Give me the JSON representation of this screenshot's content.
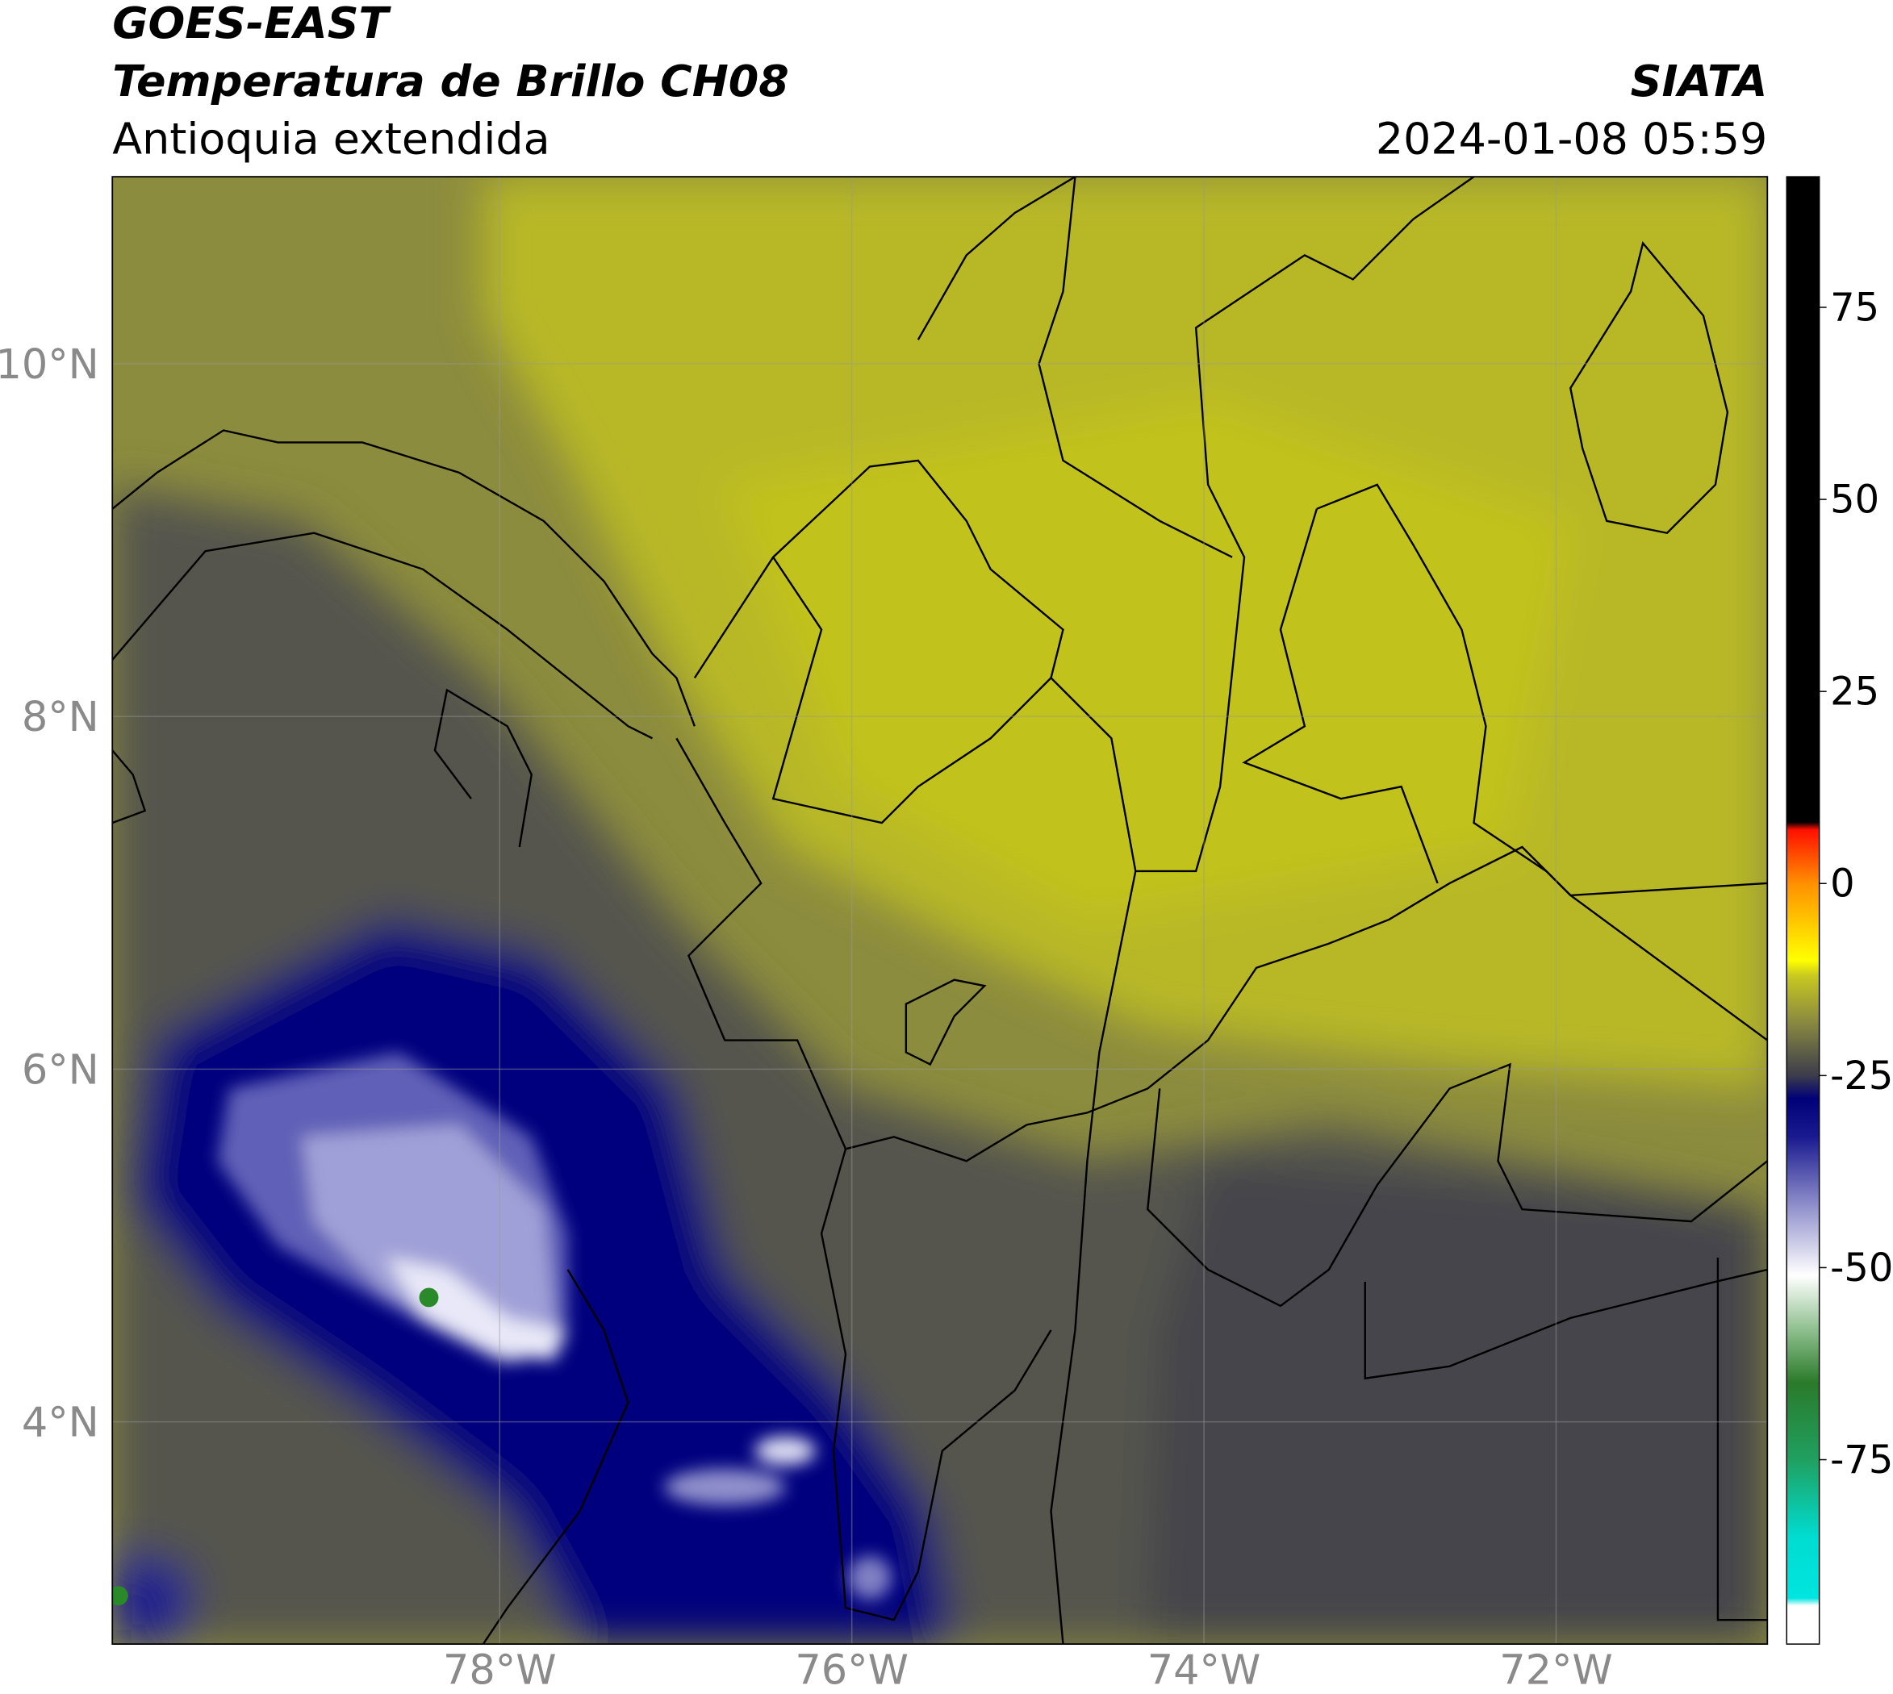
{
  "header": {
    "title": "GOES-EAST",
    "subtitle": "Temperatura de Brillo CH08",
    "region": "Antioquia extendida",
    "source": "SIATA",
    "datetime": "2024-01-08 05:59"
  },
  "map": {
    "xlim": [
      -80.2,
      -70.8
    ],
    "ylim": [
      2.74,
      11.06
    ],
    "xticks": [
      {
        "value": -78,
        "label": "78°W"
      },
      {
        "value": -76,
        "label": "76°W"
      },
      {
        "value": -74,
        "label": "74°W"
      },
      {
        "value": -72,
        "label": "72°W"
      }
    ],
    "yticks": [
      {
        "value": 4,
        "label": "4°N"
      },
      {
        "value": 6,
        "label": "6°N"
      },
      {
        "value": 8,
        "label": "8°N"
      },
      {
        "value": 10,
        "label": "10°N"
      }
    ],
    "grid": true
  },
  "colorbar": {
    "clim": [
      -99,
      92
    ],
    "ticks": [
      -75,
      -50,
      -25,
      0,
      25,
      50,
      75
    ],
    "stops": [
      {
        "value": -99,
        "color": "#ffffff"
      },
      {
        "value": -94,
        "color": "#ffffff"
      },
      {
        "value": -93,
        "color": "#00e5e0"
      },
      {
        "value": -85,
        "color": "#00dcd0"
      },
      {
        "value": -75,
        "color": "#20a060"
      },
      {
        "value": -65,
        "color": "#2a7a2a"
      },
      {
        "value": -58,
        "color": "#90c090"
      },
      {
        "value": -51,
        "color": "#ffffff"
      },
      {
        "value": -42,
        "color": "#9090cc"
      },
      {
        "value": -33,
        "color": "#1a1a90"
      },
      {
        "value": -28,
        "color": "#000078"
      },
      {
        "value": -25,
        "color": "#3c3c4c"
      },
      {
        "value": -18,
        "color": "#8a8a40"
      },
      {
        "value": -12,
        "color": "#c8c820"
      },
      {
        "value": -10,
        "color": "#ffff00"
      },
      {
        "value": 0,
        "color": "#ff9000"
      },
      {
        "value": 7,
        "color": "#ff1000"
      },
      {
        "value": 8,
        "color": "#000000"
      },
      {
        "value": 92,
        "color": "#000000"
      }
    ]
  }
}
